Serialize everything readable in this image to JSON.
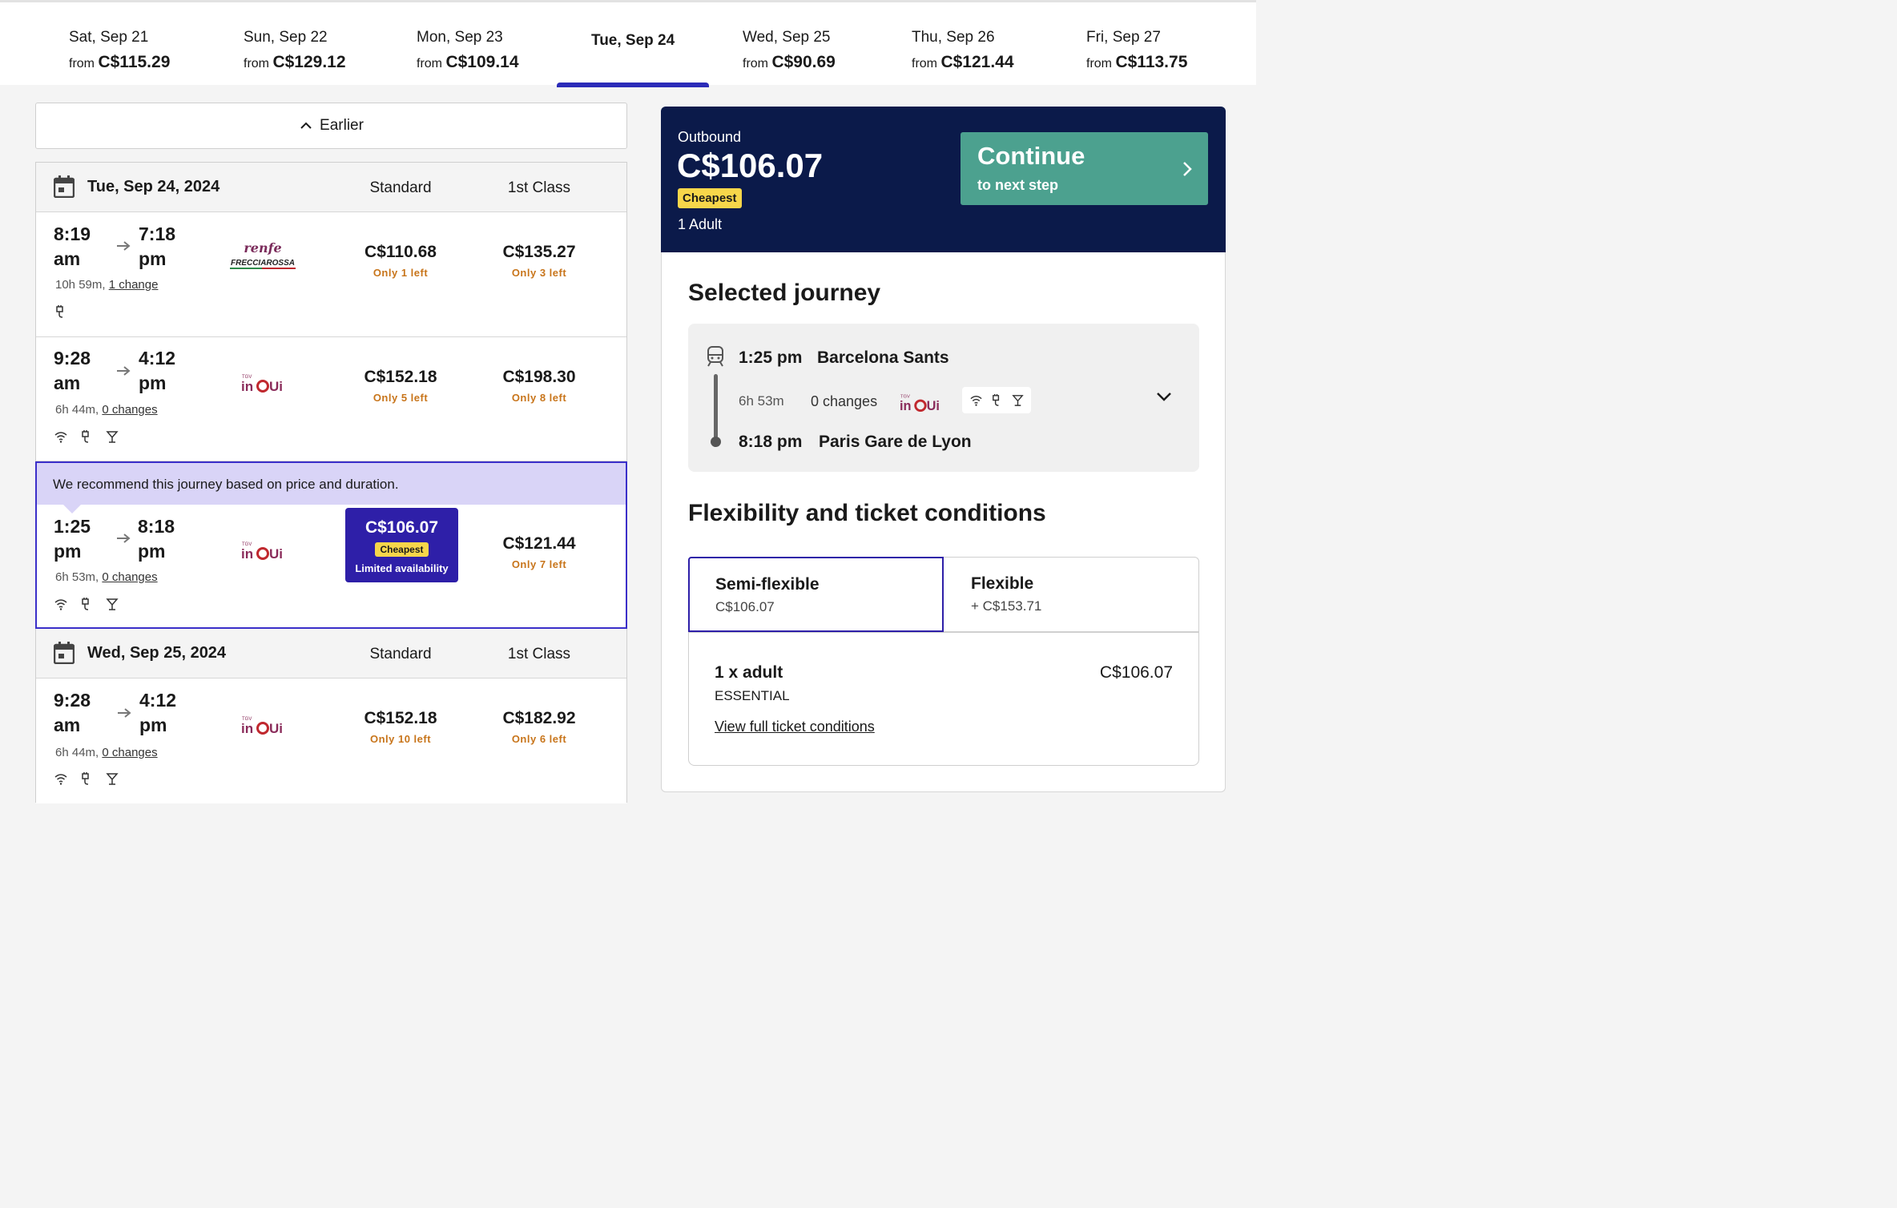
{
  "date_strip": [
    {
      "date": "Sat, Sep 21",
      "from": "from",
      "price": "C$115.29"
    },
    {
      "date": "Sun, Sep 22",
      "from": "from",
      "price": "C$129.12"
    },
    {
      "date": "Mon, Sep 23",
      "from": "from",
      "price": "C$109.14"
    },
    {
      "date": "Tue, Sep 24",
      "from": "",
      "price": "",
      "active": true
    },
    {
      "date": "Wed, Sep 25",
      "from": "from",
      "price": "C$90.69"
    },
    {
      "date": "Thu, Sep 26",
      "from": "from",
      "price": "C$121.44"
    },
    {
      "date": "Fri, Sep 27",
      "from": "from",
      "price": "C$113.75"
    }
  ],
  "earlier_label": "Earlier",
  "days": [
    {
      "date": "Tue, Sep 24, 2024",
      "col_standard": "Standard",
      "col_first": "1st Class"
    },
    {
      "date": "Wed, Sep 25, 2024",
      "col_standard": "Standard",
      "col_first": "1st Class"
    }
  ],
  "journeys": [
    {
      "dep_time": "8:19",
      "dep_ampm": "am",
      "arr_time": "7:18",
      "arr_ampm": "pm",
      "duration": "10h 59m,",
      "changes": "1 change",
      "operator": "renfe FRECCIAROSSA",
      "standard_price": "C$110.68",
      "standard_note": "Only 1 left",
      "first_price": "C$135.27",
      "first_note": "Only 3 left",
      "amenities": [
        "plug-icon"
      ]
    },
    {
      "dep_time": "9:28",
      "dep_ampm": "am",
      "arr_time": "4:12",
      "arr_ampm": "pm",
      "duration": "6h 44m,",
      "changes": "0 changes",
      "operator": "TGV inOui",
      "standard_price": "C$152.18",
      "standard_note": "Only 5 left",
      "first_price": "C$198.30",
      "first_note": "Only 8 left",
      "amenities": [
        "wifi-icon",
        "plug-icon",
        "bar-icon"
      ]
    },
    {
      "dep_time": "1:25",
      "dep_ampm": "pm",
      "arr_time": "8:18",
      "arr_ampm": "pm",
      "duration": "6h 53m,",
      "changes": "0 changes",
      "operator": "TGV inOui",
      "standard_price": "C$106.07",
      "standard_tag": "Cheapest",
      "standard_note": "Limited availability",
      "first_price": "C$121.44",
      "first_note": "Only 7 left",
      "recommendation": "We recommend this journey based on price and duration.",
      "amenities": [
        "wifi-icon",
        "plug-icon",
        "bar-icon"
      ]
    },
    {
      "dep_time": "9:28",
      "dep_ampm": "am",
      "arr_time": "4:12",
      "arr_ampm": "pm",
      "duration": "6h 44m,",
      "changes": "0 changes",
      "operator": "TGV inOui",
      "standard_price": "C$152.18",
      "standard_note": "Only 10 left",
      "first_price": "C$182.92",
      "first_note": "Only 6 left",
      "amenities": [
        "wifi-icon",
        "plug-icon",
        "bar-icon"
      ]
    }
  ],
  "summary": {
    "direction": "Outbound",
    "amount": "C$106.07",
    "tag": "Cheapest",
    "passengers": "1 Adult",
    "continue_title": "Continue",
    "continue_sub": "to next step"
  },
  "selected_journey": {
    "heading": "Selected journey",
    "dep_time": "1:25 pm",
    "dep_station": "Barcelona Sants",
    "duration": "6h 53m",
    "changes": "0 changes",
    "operator": "TGV inOui",
    "arr_time": "8:18 pm",
    "arr_station": "Paris Gare de Lyon"
  },
  "flexibility": {
    "heading": "Flexibility and ticket conditions",
    "options": [
      {
        "name": "Semi-flexible",
        "price": "C$106.07",
        "selected": true
      },
      {
        "name": "Flexible",
        "price": "+ C$153.71",
        "selected": false
      }
    ],
    "passenger_line": "1 x adult",
    "fare_class": "ESSENTIAL",
    "line_amount": "C$106.07",
    "conditions_link": "View full ticket conditions"
  },
  "colors": {
    "accent_blue": "#2b2bb8",
    "cheapest_box": "#2e1fa8",
    "summary_bg": "#0b1a4a",
    "continue_green": "#4ca18f",
    "cheapest_tag": "#f7d64a",
    "availability_orange": "#c8751b",
    "recommend_bg": "#d9d4f7"
  }
}
